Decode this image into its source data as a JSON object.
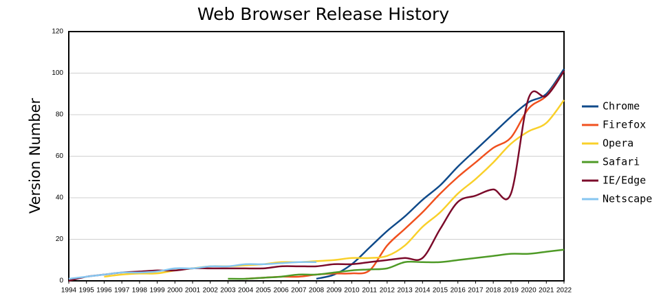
{
  "chart_data": {
    "type": "line",
    "title": "Web Browser Release History",
    "y_label": "Version Number",
    "x": [
      1994,
      1995,
      1996,
      1997,
      1998,
      1999,
      2000,
      2001,
      2002,
      2003,
      2004,
      2005,
      2006,
      2007,
      2008,
      2009,
      2010,
      2011,
      2012,
      2013,
      2014,
      2015,
      2016,
      2017,
      2018,
      2019,
      2020,
      2021,
      2022
    ],
    "xlim": [
      1994,
      2022
    ],
    "xticks": [
      1994,
      1995,
      1996,
      1997,
      1998,
      1999,
      2000,
      2001,
      2002,
      2003,
      2004,
      2005,
      2006,
      2007,
      2008,
      2009,
      2010,
      2011,
      2012,
      2013,
      2014,
      2015,
      2016,
      2017,
      2018,
      2019,
      2020,
      2021,
      2022
    ],
    "ylim": [
      0,
      120
    ],
    "yticks": [
      0,
      20,
      40,
      60,
      80,
      100,
      120
    ],
    "grid": true,
    "legend": "right",
    "series": [
      {
        "name": "Chrome",
        "color": "#0f4a8a",
        "values": [
          null,
          null,
          null,
          null,
          null,
          null,
          null,
          null,
          null,
          null,
          null,
          null,
          null,
          null,
          1,
          3,
          8,
          16,
          24,
          31,
          39,
          46,
          55,
          63,
          71,
          79,
          86,
          90,
          102
        ]
      },
      {
        "name": "Firefox",
        "color": "#f0501e",
        "values": [
          null,
          null,
          null,
          null,
          null,
          null,
          null,
          null,
          null,
          null,
          1,
          1.5,
          2,
          2,
          3,
          3.5,
          3.6,
          5,
          17,
          25,
          33,
          42,
          50,
          57,
          64,
          69,
          83,
          89,
          101
        ]
      },
      {
        "name": "Opera",
        "color": "#f9d02a",
        "values": [
          null,
          null,
          2,
          3,
          3.5,
          3.6,
          5,
          6,
          7,
          7,
          7.5,
          8,
          9,
          9,
          9.5,
          10,
          11,
          11,
          12,
          17,
          26,
          33,
          42,
          49,
          57,
          66,
          72,
          76,
          87
        ]
      },
      {
        "name": "Safari",
        "color": "#4e9a26",
        "values": [
          null,
          null,
          null,
          null,
          null,
          null,
          null,
          null,
          null,
          1,
          1,
          1.5,
          2,
          3,
          3,
          4,
          5,
          5.5,
          6,
          9,
          9,
          9,
          10,
          11,
          12,
          13,
          13,
          14,
          15
        ]
      },
      {
        "name": "IE/Edge",
        "color": "#7b0a2a",
        "values": [
          0,
          2,
          3,
          4,
          4.5,
          5,
          5,
          6,
          6,
          6,
          6,
          6,
          7,
          7,
          7,
          8,
          8,
          9,
          10,
          11,
          11,
          25,
          38,
          41,
          44,
          42,
          88,
          89,
          101
        ]
      },
      {
        "name": "Netscape",
        "color": "#86c6f0",
        "values": [
          1,
          2,
          3,
          4,
          4,
          4.5,
          6,
          6,
          7,
          7,
          8,
          8,
          8.5,
          9,
          9,
          null,
          null,
          null,
          null,
          null,
          null,
          null,
          null,
          null,
          null,
          null,
          null,
          null,
          null
        ]
      }
    ]
  }
}
